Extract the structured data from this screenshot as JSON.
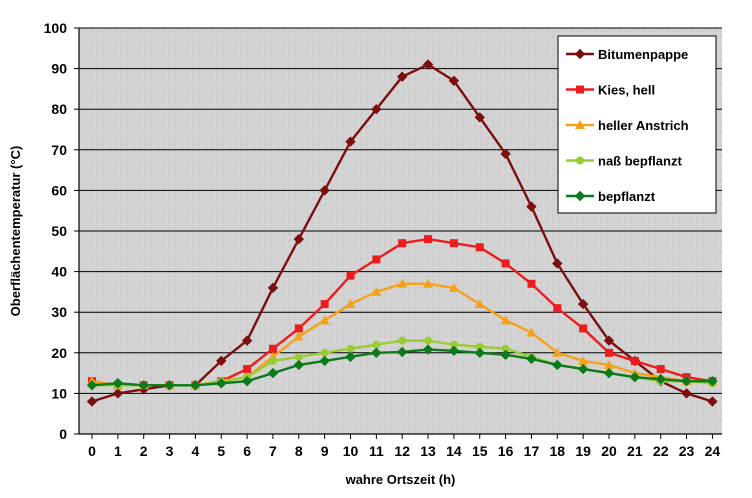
{
  "chart_data": {
    "type": "line",
    "title": "",
    "xlabel": "wahre Ortszeit (h)",
    "ylabel": "Oberflächentemperatur (°C)",
    "x": [
      0,
      1,
      2,
      3,
      4,
      5,
      6,
      7,
      8,
      9,
      10,
      11,
      12,
      13,
      14,
      15,
      16,
      17,
      18,
      19,
      20,
      21,
      22,
      23,
      24
    ],
    "xlim": [
      0,
      24
    ],
    "ylim": [
      0,
      100
    ],
    "yticks": [
      0,
      10,
      20,
      30,
      40,
      50,
      60,
      70,
      80,
      90,
      100
    ],
    "grid": true,
    "legend_position": "top-right",
    "series": [
      {
        "name": "Bitumenpappe",
        "color": "#7b0f0f",
        "marker": "diamond",
        "values": [
          8,
          10,
          11,
          12,
          12,
          18,
          23,
          36,
          48,
          60,
          72,
          80,
          88,
          91,
          87,
          78,
          69,
          56,
          42,
          32,
          23,
          18,
          13,
          10,
          8
        ]
      },
      {
        "name": "Kies, hell",
        "color": "#ee1c1c",
        "marker": "square",
        "values": [
          13,
          12,
          12,
          12,
          12,
          13,
          16,
          21,
          26,
          32,
          39,
          43,
          47,
          48,
          47,
          46,
          42,
          37,
          31,
          26,
          20,
          18,
          16,
          14,
          13
        ]
      },
      {
        "name": "heller Anstrich",
        "color": "#f7a11a",
        "marker": "triangle",
        "values": [
          13,
          12,
          12,
          12,
          12,
          13,
          14,
          19,
          24,
          28,
          32,
          35,
          37,
          37,
          36,
          32,
          28,
          25,
          20,
          18,
          17,
          15,
          14,
          13,
          13
        ]
      },
      {
        "name": "naß bepflanzt",
        "color": "#99cc33",
        "marker": "circle",
        "values": [
          12,
          12,
          12,
          12,
          12,
          13,
          14,
          18,
          19,
          20,
          21,
          22,
          23,
          23,
          22,
          21.5,
          21,
          19,
          17,
          16,
          15,
          14,
          13,
          13,
          12.5
        ]
      },
      {
        "name": "bepflanzt",
        "color": "#0a7a1a",
        "marker": "diamond",
        "values": [
          12,
          12.5,
          12,
          12,
          12,
          12.5,
          13,
          15,
          17,
          18,
          19,
          20,
          20.2,
          20.8,
          20.5,
          20,
          19.5,
          18.5,
          17,
          16,
          15,
          14,
          13.5,
          13,
          13
        ]
      }
    ]
  }
}
